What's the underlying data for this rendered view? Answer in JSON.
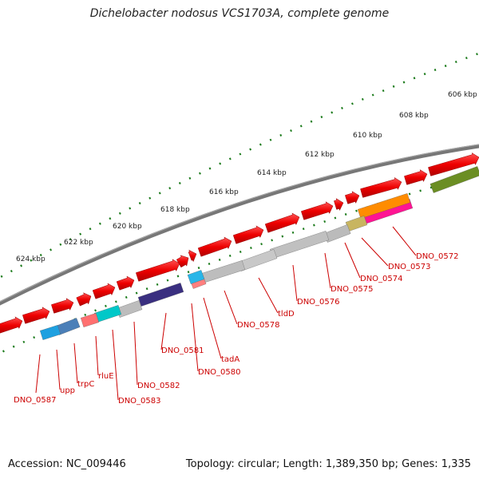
{
  "title": "Dichelobacter nodosus VCS1703A, complete genome",
  "footer": {
    "accession": "Accession: NC_009446",
    "topology": "Topology: circular; Length: 1,389,350 bp; Genes: 1,335"
  },
  "colors": {
    "forward_gene": "#ee0000",
    "backbone": "#777777",
    "tick": "#1a7a1a",
    "label": "#cc0000"
  },
  "scale": {
    "unit": "kbp",
    "ticks": [
      "606 kbp",
      "608 kbp",
      "610 kbp",
      "612 kbp",
      "614 kbp",
      "616 kbp",
      "618 kbp",
      "620 kbp",
      "622 kbp",
      "624 kbp"
    ]
  },
  "genes": [
    {
      "name": "DNO_0572",
      "color": "#ff1493"
    },
    {
      "name": "DNO_0573",
      "color": "#ff8c00"
    },
    {
      "name": "DNO_0574",
      "color": "#c8b560"
    },
    {
      "name": "DNO_0575",
      "color": "#bbbbbb"
    },
    {
      "name": "DNO_0576",
      "color": "#c0c0c0"
    },
    {
      "name": "tldD",
      "color": "#c8c8c8"
    },
    {
      "name": "DNO_0578",
      "color": "#bdbdbd"
    },
    {
      "name": "tadA",
      "color": "#ff7f7f"
    },
    {
      "name": "DNO_0580",
      "color": "#29b6e8"
    },
    {
      "name": "DNO_0581",
      "color": "#3a2f80"
    },
    {
      "name": "DNO_0582",
      "color": "#bdbdbd"
    },
    {
      "name": "DNO_0583",
      "color": "#00c8c8"
    },
    {
      "name": "rluE",
      "color": "#ff7070"
    },
    {
      "name": "trpC",
      "color": "#4b7fb8"
    },
    {
      "name": "upp",
      "color": "#1ea0e0"
    },
    {
      "name": "DNO_0587",
      "color": "#ee0000"
    }
  ],
  "reverse_block_color": "#6b8e23"
}
